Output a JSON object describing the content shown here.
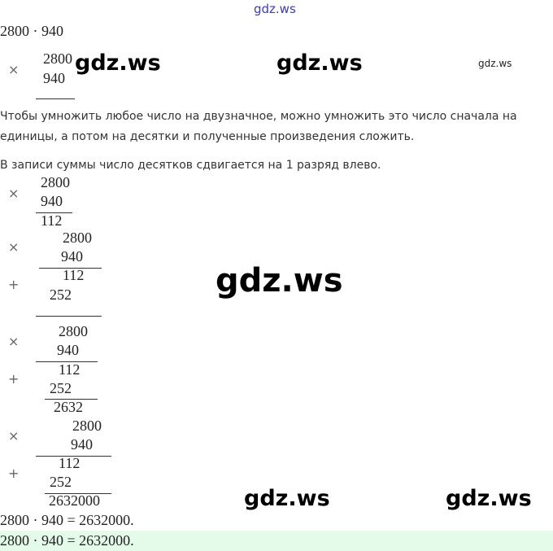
{
  "watermark": "gdz.ws",
  "expression": "2800 · 940",
  "factors": [
    "2800",
    "940"
  ],
  "partials": [
    "112",
    "252"
  ],
  "partial_sum": "2632",
  "product": "2632000",
  "ops": {
    "times": "×",
    "plus": "+"
  },
  "text1": "Чтобы умножить любое число на двузначное, можно умножить это число сначала на единицы, а потом на десятки и полученные произведения сложить.",
  "text2": "В записи суммы число десятков сдвигается на 1 разряд влево.",
  "result": "2800 · 940 = 2632000.",
  "answer": "2800 · 940 = 2632000.",
  "colors": {
    "highlight": "#e5fbe9",
    "watermark_top": "#3a3acc"
  }
}
